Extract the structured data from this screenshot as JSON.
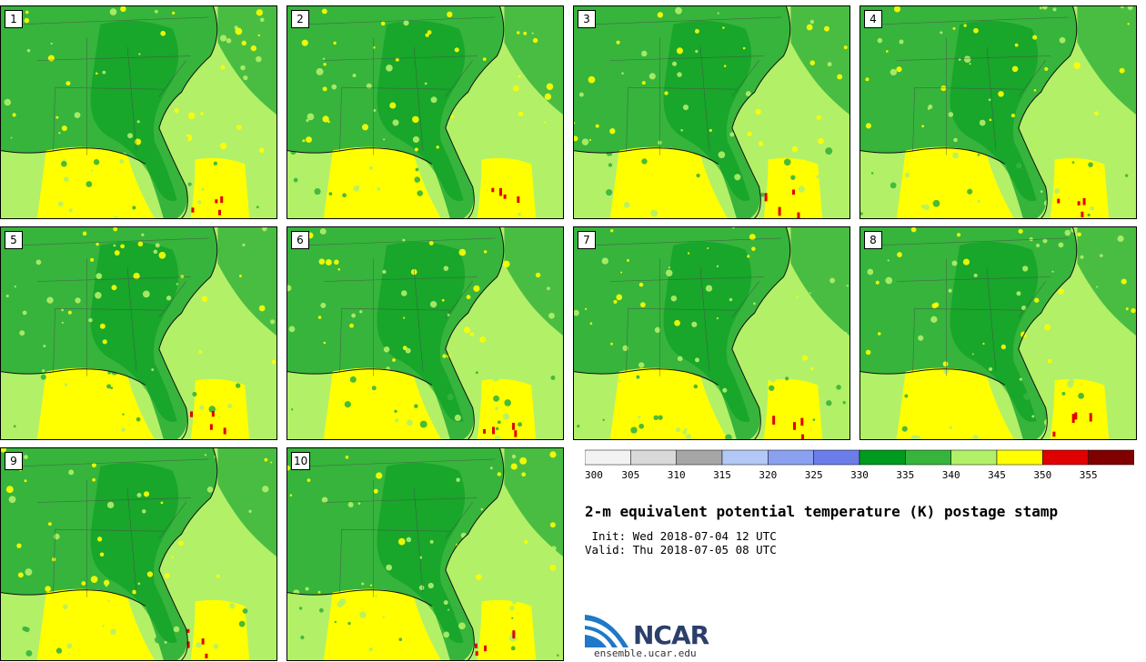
{
  "panels": [
    {
      "label": "1"
    },
    {
      "label": "2"
    },
    {
      "label": "3"
    },
    {
      "label": "4"
    },
    {
      "label": "5"
    },
    {
      "label": "6"
    },
    {
      "label": "7"
    },
    {
      "label": "8"
    },
    {
      "label": "9"
    },
    {
      "label": "10"
    }
  ],
  "colorbar": {
    "ticks": [
      "300",
      "305",
      "310",
      "315",
      "320",
      "325",
      "330",
      "335",
      "340",
      "345",
      "350",
      "355"
    ],
    "colors": [
      "#f2f2f2",
      "#d9d9d9",
      "#a6a6a6",
      "#b4c8f5",
      "#8aa1f0",
      "#6a7de8",
      "#009a1e",
      "#36b43c",
      "#b2f068",
      "#ffff00",
      "#e00000",
      "#800000"
    ]
  },
  "title": "2-m equivalent potential temperature (K) postage stamp",
  "init_line": " Init: Wed 2018-07-04 12 UTC",
  "valid_line": "Valid: Thu 2018-07-05 08 UTC",
  "logo": {
    "text": "NCAR",
    "url": "ensemble.ucar.edu"
  }
}
